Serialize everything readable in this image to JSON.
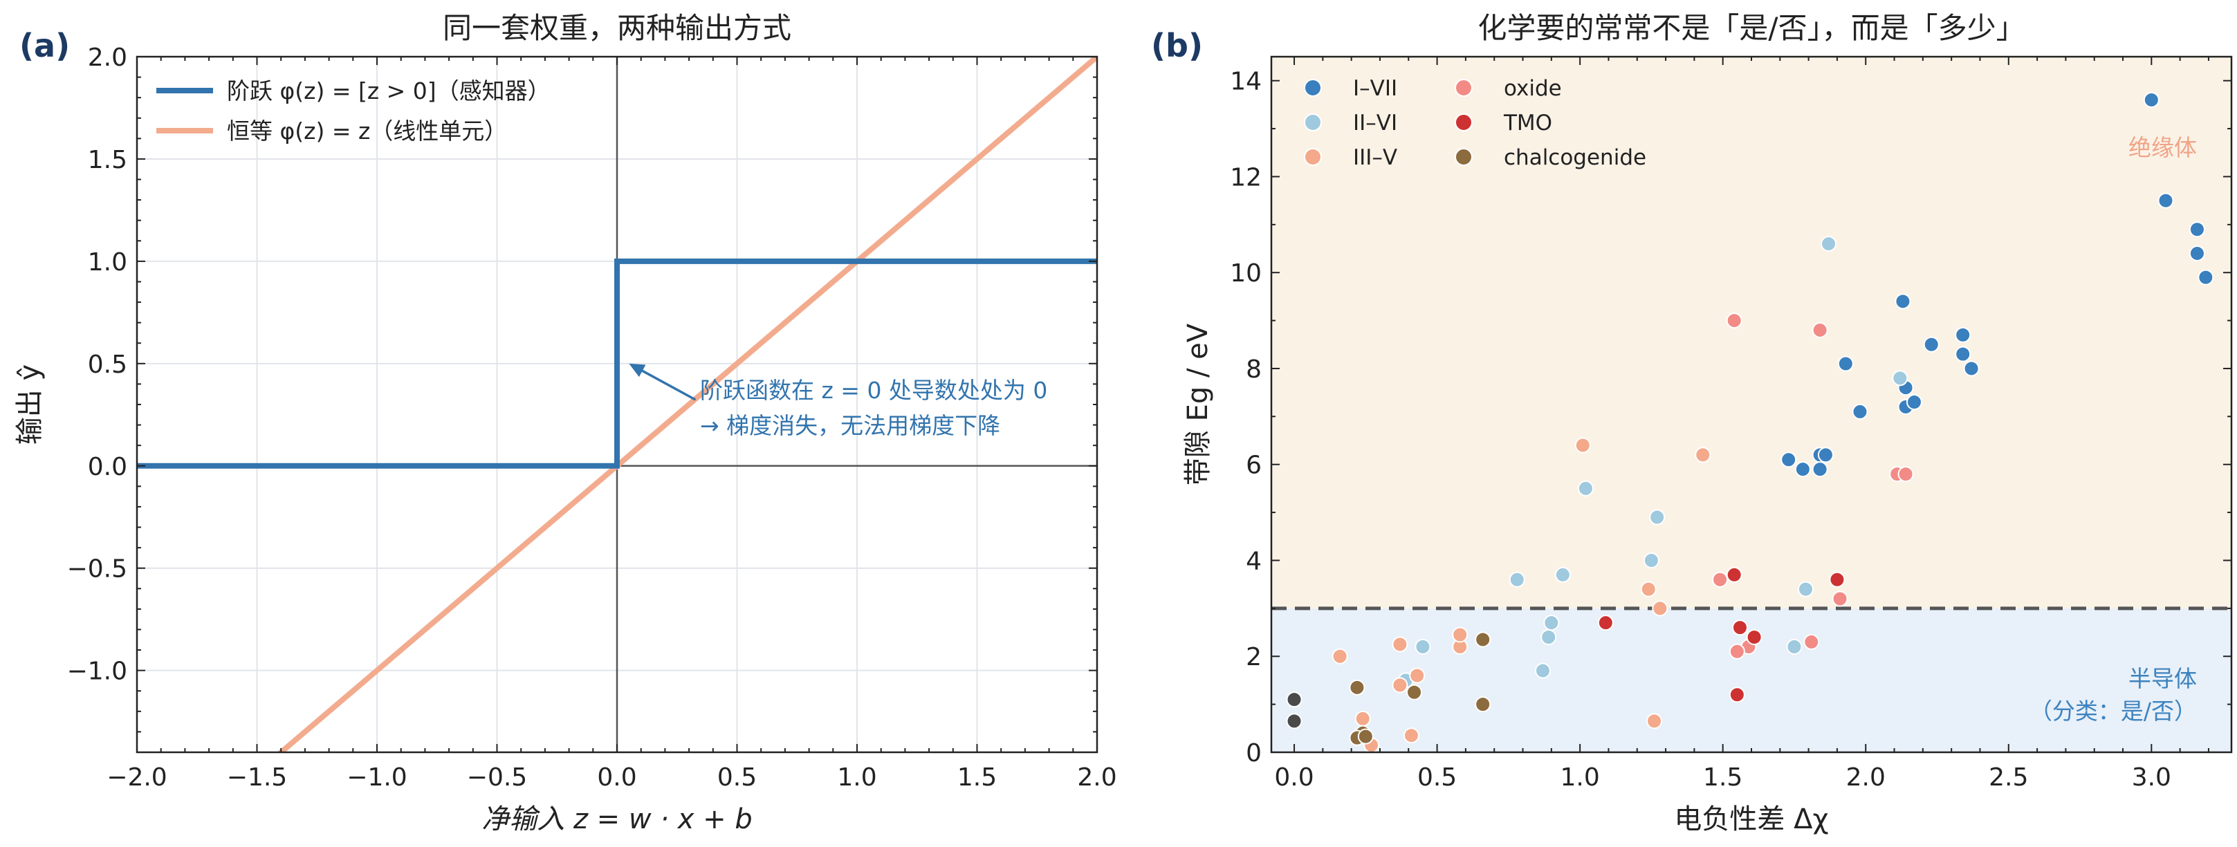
{
  "colors": {
    "step": "#3274ad",
    "identity": "#f3ab8e",
    "axis": "#222222",
    "grid": "#e1e4ea",
    "zero_line": "#555555",
    "annotation": "#3274ad",
    "panel_label": "#1c3a63",
    "insulator_bg": "#fbf2e6",
    "semiconductor_bg": "#e8f0f9",
    "insulator_text": "#f0a487",
    "semiconductor_text": "#3d83bf",
    "threshold": "#555555"
  },
  "chart_data": [
    {
      "type": "line",
      "panel_label": "(a)",
      "title": "同一套权重，两种输出方式",
      "xlabel": "净输入 z = w · x + b",
      "ylabel": "输出 ŷ",
      "xlim": [
        -2.0,
        2.0
      ],
      "ylim": [
        -1.4,
        2.0
      ],
      "xticks": [
        -2.0,
        -1.5,
        -1.0,
        -0.5,
        0.0,
        0.5,
        1.0,
        1.5,
        2.0
      ],
      "yticks": [
        -1.0,
        -0.5,
        0.0,
        0.5,
        1.0,
        1.5,
        2.0
      ],
      "xtick_labels": [
        "−2.0",
        "−1.5",
        "−1.0",
        "−0.5",
        "0.0",
        "0.5",
        "1.0",
        "1.5",
        "2.0"
      ],
      "ytick_labels": [
        "−1.0",
        "−0.5",
        "0.0",
        "0.5",
        "1.0",
        "1.5",
        "2.0"
      ],
      "grid": true,
      "legend_position": "top-left",
      "series": [
        {
          "name": "阶跃 φ(z) = [z > 0]（感知器）",
          "key": "step",
          "x": [
            -2.0,
            0.0,
            0.0,
            2.0
          ],
          "y": [
            0,
            0,
            1,
            1
          ]
        },
        {
          "name": "恒等 φ(z) = z（线性单元）",
          "key": "identity",
          "x": [
            -2.0,
            2.0
          ],
          "y": [
            -2.0,
            2.0
          ]
        }
      ],
      "annotation": {
        "lines": [
          "阶跃函数在 z = 0 处导数处处为 0",
          "→ 梯度消失，无法用梯度下降"
        ],
        "arrow_to": [
          0.05,
          0.5
        ],
        "text_at": [
          0.35,
          0.33
        ]
      }
    },
    {
      "type": "scatter",
      "panel_label": "(b)",
      "title": "化学要的常常不是「是/否」，而是「多少」",
      "xlabel": "电负性差 Δχ",
      "ylabel": "带隙 Eg / eV",
      "xlim": [
        -0.08,
        3.28
      ],
      "ylim": [
        0,
        14.5
      ],
      "xticks": [
        0.0,
        0.5,
        1.0,
        1.5,
        2.0,
        2.5,
        3.0
      ],
      "yticks": [
        0,
        2,
        4,
        6,
        8,
        10,
        12,
        14
      ],
      "xtick_labels": [
        "0.0",
        "0.5",
        "1.0",
        "1.5",
        "2.0",
        "2.5",
        "3.0"
      ],
      "ytick_labels": [
        "0",
        "2",
        "4",
        "6",
        "8",
        "10",
        "12",
        "14"
      ],
      "grid": false,
      "legend_position": "top-left",
      "threshold": 3.0,
      "region_labels": {
        "insulator": "绝缘体",
        "semiconductor_line1": "半导体",
        "semiconductor_line2": "（分类：是/否）"
      },
      "series": [
        {
          "name": "I–VII",
          "color": "#3a7fbe",
          "points": [
            [
              3.0,
              13.6
            ],
            [
              3.05,
              11.5
            ],
            [
              3.16,
              10.9
            ],
            [
              3.16,
              10.4
            ],
            [
              3.19,
              9.9
            ],
            [
              2.13,
              9.4
            ],
            [
              2.34,
              8.7
            ],
            [
              2.34,
              8.3
            ],
            [
              2.37,
              8.0
            ],
            [
              2.23,
              8.5
            ],
            [
              1.93,
              8.1
            ],
            [
              1.98,
              7.1
            ],
            [
              2.14,
              7.6
            ],
            [
              2.14,
              7.2
            ],
            [
              2.17,
              7.3
            ],
            [
              1.73,
              6.1
            ],
            [
              1.78,
              5.9
            ],
            [
              1.84,
              6.2
            ],
            [
              1.86,
              6.2
            ],
            [
              1.84,
              5.9
            ]
          ]
        },
        {
          "name": "II–VI",
          "color": "#9ec9de",
          "points": [
            [
              1.87,
              10.6
            ],
            [
              2.12,
              7.8
            ],
            [
              1.02,
              5.5
            ],
            [
              1.27,
              4.9
            ],
            [
              1.25,
              4.0
            ],
            [
              0.78,
              3.6
            ],
            [
              0.94,
              3.7
            ],
            [
              1.79,
              3.4
            ],
            [
              0.9,
              2.7
            ],
            [
              0.89,
              2.4
            ],
            [
              0.87,
              1.7
            ],
            [
              1.75,
              2.2
            ],
            [
              0.45,
              2.2
            ],
            [
              0.39,
              1.5
            ]
          ]
        },
        {
          "name": "III–V",
          "color": "#f3a98a",
          "points": [
            [
              1.01,
              6.4
            ],
            [
              1.43,
              6.2
            ],
            [
              1.24,
              3.4
            ],
            [
              1.28,
              3.0
            ],
            [
              0.16,
              2.0
            ],
            [
              0.37,
              2.25
            ],
            [
              0.58,
              2.2
            ],
            [
              0.58,
              2.45
            ],
            [
              0.43,
              1.6
            ],
            [
              0.37,
              1.4
            ],
            [
              0.41,
              0.35
            ],
            [
              0.27,
              0.15
            ],
            [
              0.24,
              0.7
            ],
            [
              1.26,
              0.65
            ]
          ]
        },
        {
          "name": "oxide",
          "color": "#f28b86",
          "points": [
            [
              1.54,
              9.0
            ],
            [
              1.84,
              8.8
            ],
            [
              2.11,
              5.8
            ],
            [
              2.14,
              5.8
            ],
            [
              1.49,
              3.6
            ],
            [
              1.59,
              2.2
            ],
            [
              1.55,
              2.1
            ],
            [
              1.81,
              2.3
            ],
            [
              1.91,
              3.2
            ]
          ]
        },
        {
          "name": "TMO",
          "color": "#cd3131",
          "points": [
            [
              1.54,
              3.7
            ],
            [
              1.9,
              3.6
            ],
            [
              1.09,
              2.7
            ],
            [
              1.56,
              2.6
            ],
            [
              1.61,
              2.4
            ],
            [
              1.55,
              1.2
            ]
          ]
        },
        {
          "name": "chalcogenide",
          "color": "#8c6b3e",
          "points": [
            [
              0.66,
              2.35
            ],
            [
              0.22,
              1.35
            ],
            [
              0.42,
              1.25
            ],
            [
              0.66,
              1.0
            ],
            [
              0.24,
              0.4
            ],
            [
              0.22,
              0.3
            ],
            [
              0.25,
              0.33
            ]
          ]
        },
        {
          "name": "",
          "color": "#4a4a4a",
          "points": [
            [
              0.0,
              1.1
            ],
            [
              0.0,
              0.65
            ]
          ]
        }
      ]
    }
  ]
}
